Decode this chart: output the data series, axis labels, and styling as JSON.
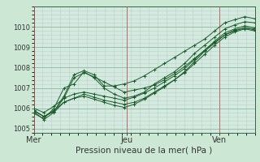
{
  "title": "Pression niveau de la mer( hPa )",
  "bg_color": "#cce8d4",
  "plot_bg_color": "#d4eae0",
  "line_color": "#1a5c2a",
  "ylim": [
    1004.8,
    1011.0
  ],
  "yticks": [
    1005,
    1006,
    1007,
    1008,
    1009,
    1010
  ],
  "x_day_labels": [
    [
      "Mer",
      0.0
    ],
    [
      "Jeu",
      0.42
    ],
    [
      "Ven",
      0.84
    ]
  ],
  "x_day_vlines": [
    0.0,
    0.42,
    0.84
  ],
  "series": [
    [
      1005.9,
      1005.6,
      1005.85,
      1006.6,
      1007.65,
      1007.85,
      1007.65,
      1007.1,
      1007.1,
      1007.2,
      1007.35,
      1007.6,
      1007.9,
      1008.2,
      1008.5,
      1008.8,
      1009.1,
      1009.4,
      1009.8,
      1010.2,
      1010.35,
      1010.5,
      1010.4
    ],
    [
      1005.75,
      1005.5,
      1006.0,
      1007.0,
      1007.2,
      1007.8,
      1007.5,
      1007.0,
      1006.7,
      1006.5,
      1006.6,
      1006.8,
      1007.2,
      1007.5,
      1007.8,
      1008.2,
      1008.7,
      1009.1,
      1009.5,
      1009.9,
      1010.1,
      1010.25,
      1010.2
    ],
    [
      1005.85,
      1005.45,
      1005.8,
      1006.3,
      1006.5,
      1006.7,
      1006.55,
      1006.4,
      1006.3,
      1006.2,
      1006.3,
      1006.5,
      1006.8,
      1007.1,
      1007.4,
      1007.8,
      1008.3,
      1008.8,
      1009.2,
      1009.6,
      1009.85,
      1009.95,
      1009.85
    ],
    [
      1005.9,
      1005.6,
      1005.9,
      1006.3,
      1006.5,
      1006.6,
      1006.45,
      1006.3,
      1006.15,
      1006.05,
      1006.2,
      1006.45,
      1006.75,
      1007.05,
      1007.4,
      1007.75,
      1008.2,
      1008.65,
      1009.1,
      1009.5,
      1009.75,
      1009.9,
      1009.8
    ],
    [
      1006.0,
      1005.8,
      1006.1,
      1006.5,
      1006.7,
      1006.8,
      1006.7,
      1006.6,
      1006.5,
      1006.4,
      1006.55,
      1006.75,
      1007.0,
      1007.3,
      1007.6,
      1007.95,
      1008.4,
      1008.85,
      1009.3,
      1009.7,
      1009.9,
      1010.05,
      1009.95
    ],
    [
      1005.9,
      1005.6,
      1005.85,
      1006.5,
      1007.5,
      1007.75,
      1007.55,
      1007.3,
      1007.05,
      1006.8,
      1006.9,
      1007.0,
      1007.15,
      1007.4,
      1007.7,
      1008.05,
      1008.45,
      1008.85,
      1009.25,
      1009.6,
      1009.8,
      1009.95,
      1009.9
    ]
  ],
  "n_xpoints": 23,
  "minor_grid_color": "#b8d4c4",
  "major_grid_color": "#90b8a0",
  "vline_color": "#cc4444",
  "spine_color": "#336644",
  "tick_color": "#333333",
  "title_fontsize": 7.5,
  "tick_fontsize": 6,
  "xlabel_fontsize": 7
}
